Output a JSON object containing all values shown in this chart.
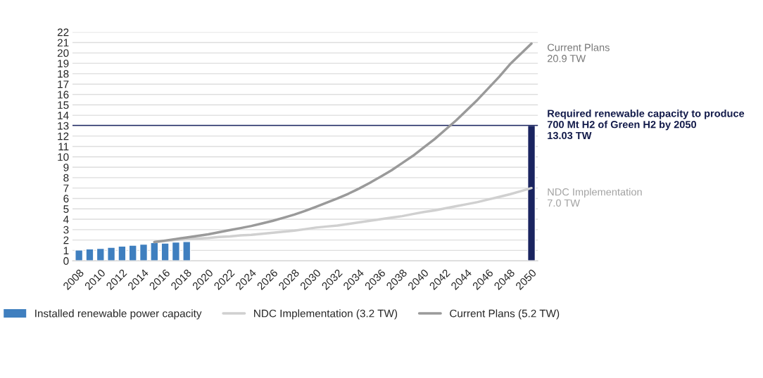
{
  "chart_data": {
    "type": "bar",
    "categories": [
      "2008",
      null,
      "2010",
      null,
      "2012",
      null,
      "2014",
      null,
      "2016",
      null,
      "2018",
      null,
      "2020",
      null,
      "2022",
      null,
      "2024",
      null,
      "2026",
      null,
      "2028",
      null,
      "2030",
      null,
      "2032",
      null,
      "2034",
      null,
      "2036",
      null,
      "2038",
      null,
      "2040",
      null,
      "2042",
      null,
      "2044",
      null,
      "2046",
      null,
      "2048",
      null,
      "2050"
    ],
    "series": [
      {
        "name": "Installed renewable power capacity",
        "color": "#3f7fbf",
        "values": [
          1.05,
          1.15,
          1.2,
          1.3,
          1.42,
          1.5,
          1.6,
          1.75,
          1.7,
          1.8,
          1.85,
          null,
          null,
          null,
          null,
          null,
          null,
          null,
          null,
          null,
          null,
          null,
          null,
          null,
          null,
          null,
          null,
          null,
          null,
          null,
          null,
          null,
          null,
          null,
          null,
          null,
          null,
          null,
          null,
          null,
          null,
          null,
          null
        ]
      },
      {
        "color": "#1a2460",
        "values": [
          null,
          null,
          null,
          null,
          null,
          null,
          null,
          null,
          null,
          null,
          null,
          null,
          null,
          null,
          null,
          null,
          null,
          null,
          null,
          null,
          null,
          null,
          null,
          null,
          null,
          null,
          null,
          null,
          null,
          null,
          null,
          null,
          null,
          null,
          null,
          null,
          null,
          null,
          null,
          null,
          null,
          null,
          13.03
        ]
      },
      {
        "name": "NDC Implementation (3.2 TW)",
        "type": "line",
        "color": "#d0d0d0",
        "values": [
          null,
          null,
          null,
          null,
          null,
          null,
          null,
          1.8,
          1.9,
          2.0,
          2.1,
          2.15,
          2.2,
          2.3,
          2.35,
          2.45,
          2.5,
          2.6,
          2.7,
          2.8,
          2.9,
          3.05,
          3.2,
          3.3,
          3.4,
          3.55,
          3.7,
          3.85,
          4.0,
          4.15,
          4.3,
          4.5,
          4.7,
          4.85,
          5.05,
          5.25,
          5.45,
          5.65,
          5.9,
          6.15,
          6.4,
          6.7,
          7.0
        ]
      },
      {
        "name": "Current Plans (5.2 TW)",
        "type": "line",
        "color": "#9a9a9a",
        "values": [
          null,
          null,
          null,
          null,
          null,
          null,
          null,
          1.8,
          1.95,
          2.1,
          2.25,
          2.4,
          2.55,
          2.75,
          2.95,
          3.15,
          3.35,
          3.6,
          3.85,
          4.15,
          4.45,
          4.8,
          5.2,
          5.6,
          6.0,
          6.45,
          6.95,
          7.5,
          8.1,
          8.7,
          9.4,
          10.1,
          10.9,
          11.7,
          12.6,
          13.5,
          14.5,
          15.5,
          16.6,
          17.7,
          18.9,
          19.9,
          20.9
        ]
      }
    ],
    "ylim": [
      0,
      22
    ],
    "yticks": [
      0,
      1,
      2,
      3,
      4,
      5,
      6,
      7,
      8,
      9,
      10,
      11,
      12,
      13,
      14,
      15,
      16,
      17,
      18,
      19,
      20,
      21,
      22
    ],
    "ref_lines": [
      {
        "axis": "y",
        "value": 13.03,
        "color": "#1a2460"
      }
    ],
    "annotations": [
      {
        "text": "Current Plans\n20.9 TW",
        "x": "2050",
        "y": 20.9
      },
      {
        "text": "Required renewable capacity to produce\n700 Mt H2 of Green H2 by 2050\n13.03 TW",
        "x": "2050",
        "y": 13.03
      },
      {
        "text": "NDC Implementation\n7.0 TW",
        "x": "2050",
        "y": 7.0
      }
    ],
    "grid": "y",
    "legend": "bottom"
  }
}
